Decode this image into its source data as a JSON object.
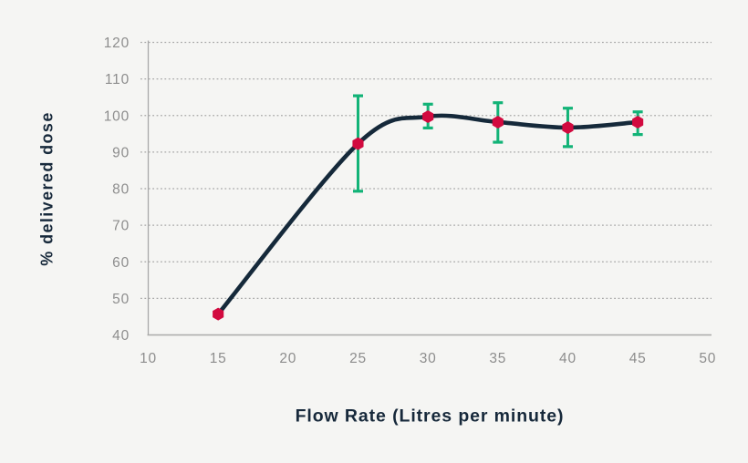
{
  "background_color": "#f5f5f3",
  "chart_data": {
    "type": "line",
    "title": "",
    "xlabel": "Flow Rate (Litres per minute)",
    "ylabel": "% delivered dose",
    "x": [
      15,
      25,
      30,
      35,
      40,
      45
    ],
    "y": [
      45.7,
      92.3,
      99.7,
      98.2,
      96.7,
      98.2
    ],
    "error_bars": {
      "low": [
        null,
        79.3,
        96.6,
        92.7,
        91.5,
        94.8
      ],
      "high": [
        null,
        105.4,
        103.1,
        103.5,
        102.0,
        101.0
      ]
    },
    "xticks": [
      "10",
      "15",
      "20",
      "25",
      "30",
      "35",
      "40",
      "45",
      "50"
    ],
    "yticks": [
      "40",
      "50",
      "60",
      "70",
      "80",
      "90",
      "100",
      "110",
      "120"
    ],
    "xlim": [
      10,
      50
    ],
    "ylim": [
      40,
      120
    ],
    "grid": "horizontal-dotted",
    "legend": "none",
    "marker_shape": "hexagon",
    "colors": {
      "line": "#15293a",
      "marker": "#d20a3f",
      "error_bar": "#12b377",
      "grid": "#a8a8a8",
      "axis": "#a9a9a9",
      "tick_label": "#8d8d8d",
      "axis_title": "#17293b"
    }
  }
}
